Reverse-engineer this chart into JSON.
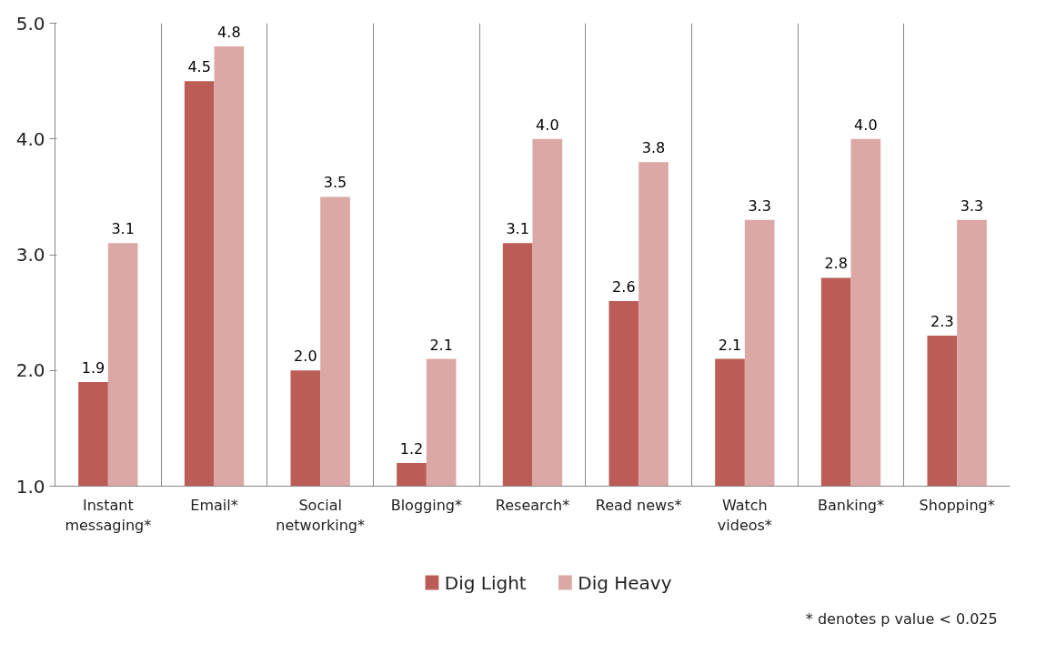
{
  "chart_data": {
    "type": "bar",
    "categories": [
      "Instant messaging*",
      "Email*",
      "Social networking*",
      "Blogging*",
      "Research*",
      "Read news*",
      "Watch videos*",
      "Banking*",
      "Shopping*"
    ],
    "series": [
      {
        "name": "Dig Light",
        "color": "#bc5c56",
        "values": [
          1.9,
          4.5,
          2.0,
          1.2,
          3.1,
          2.6,
          2.1,
          2.8,
          2.3
        ],
        "value_labels": [
          "1.9",
          "4.5",
          "2.0",
          "1.2",
          "3.1",
          "2.6",
          "2.1",
          "2.8",
          "2.3"
        ]
      },
      {
        "name": "Dig Heavy",
        "color": "#dba8a5",
        "values": [
          3.1,
          4.8,
          3.5,
          2.1,
          4.0,
          3.8,
          3.3,
          4.0,
          3.3
        ],
        "value_labels": [
          "3.1",
          "4.8",
          "3.5",
          "2.1",
          "4.0",
          "3.8",
          "3.3",
          "4.0",
          "3.3"
        ]
      }
    ],
    "ylim": [
      1.0,
      5.0
    ],
    "yticks": [
      {
        "value": 1,
        "label": "1.0"
      },
      {
        "value": 2,
        "label": "2.0"
      },
      {
        "value": 3,
        "label": "3.0"
      },
      {
        "value": 4,
        "label": "4.0"
      },
      {
        "value": 5,
        "label": "5.0"
      }
    ],
    "data_labels": true,
    "grid": "x",
    "legend": "bottom",
    "annotations": [
      "* denotes p value < 0.025"
    ]
  }
}
